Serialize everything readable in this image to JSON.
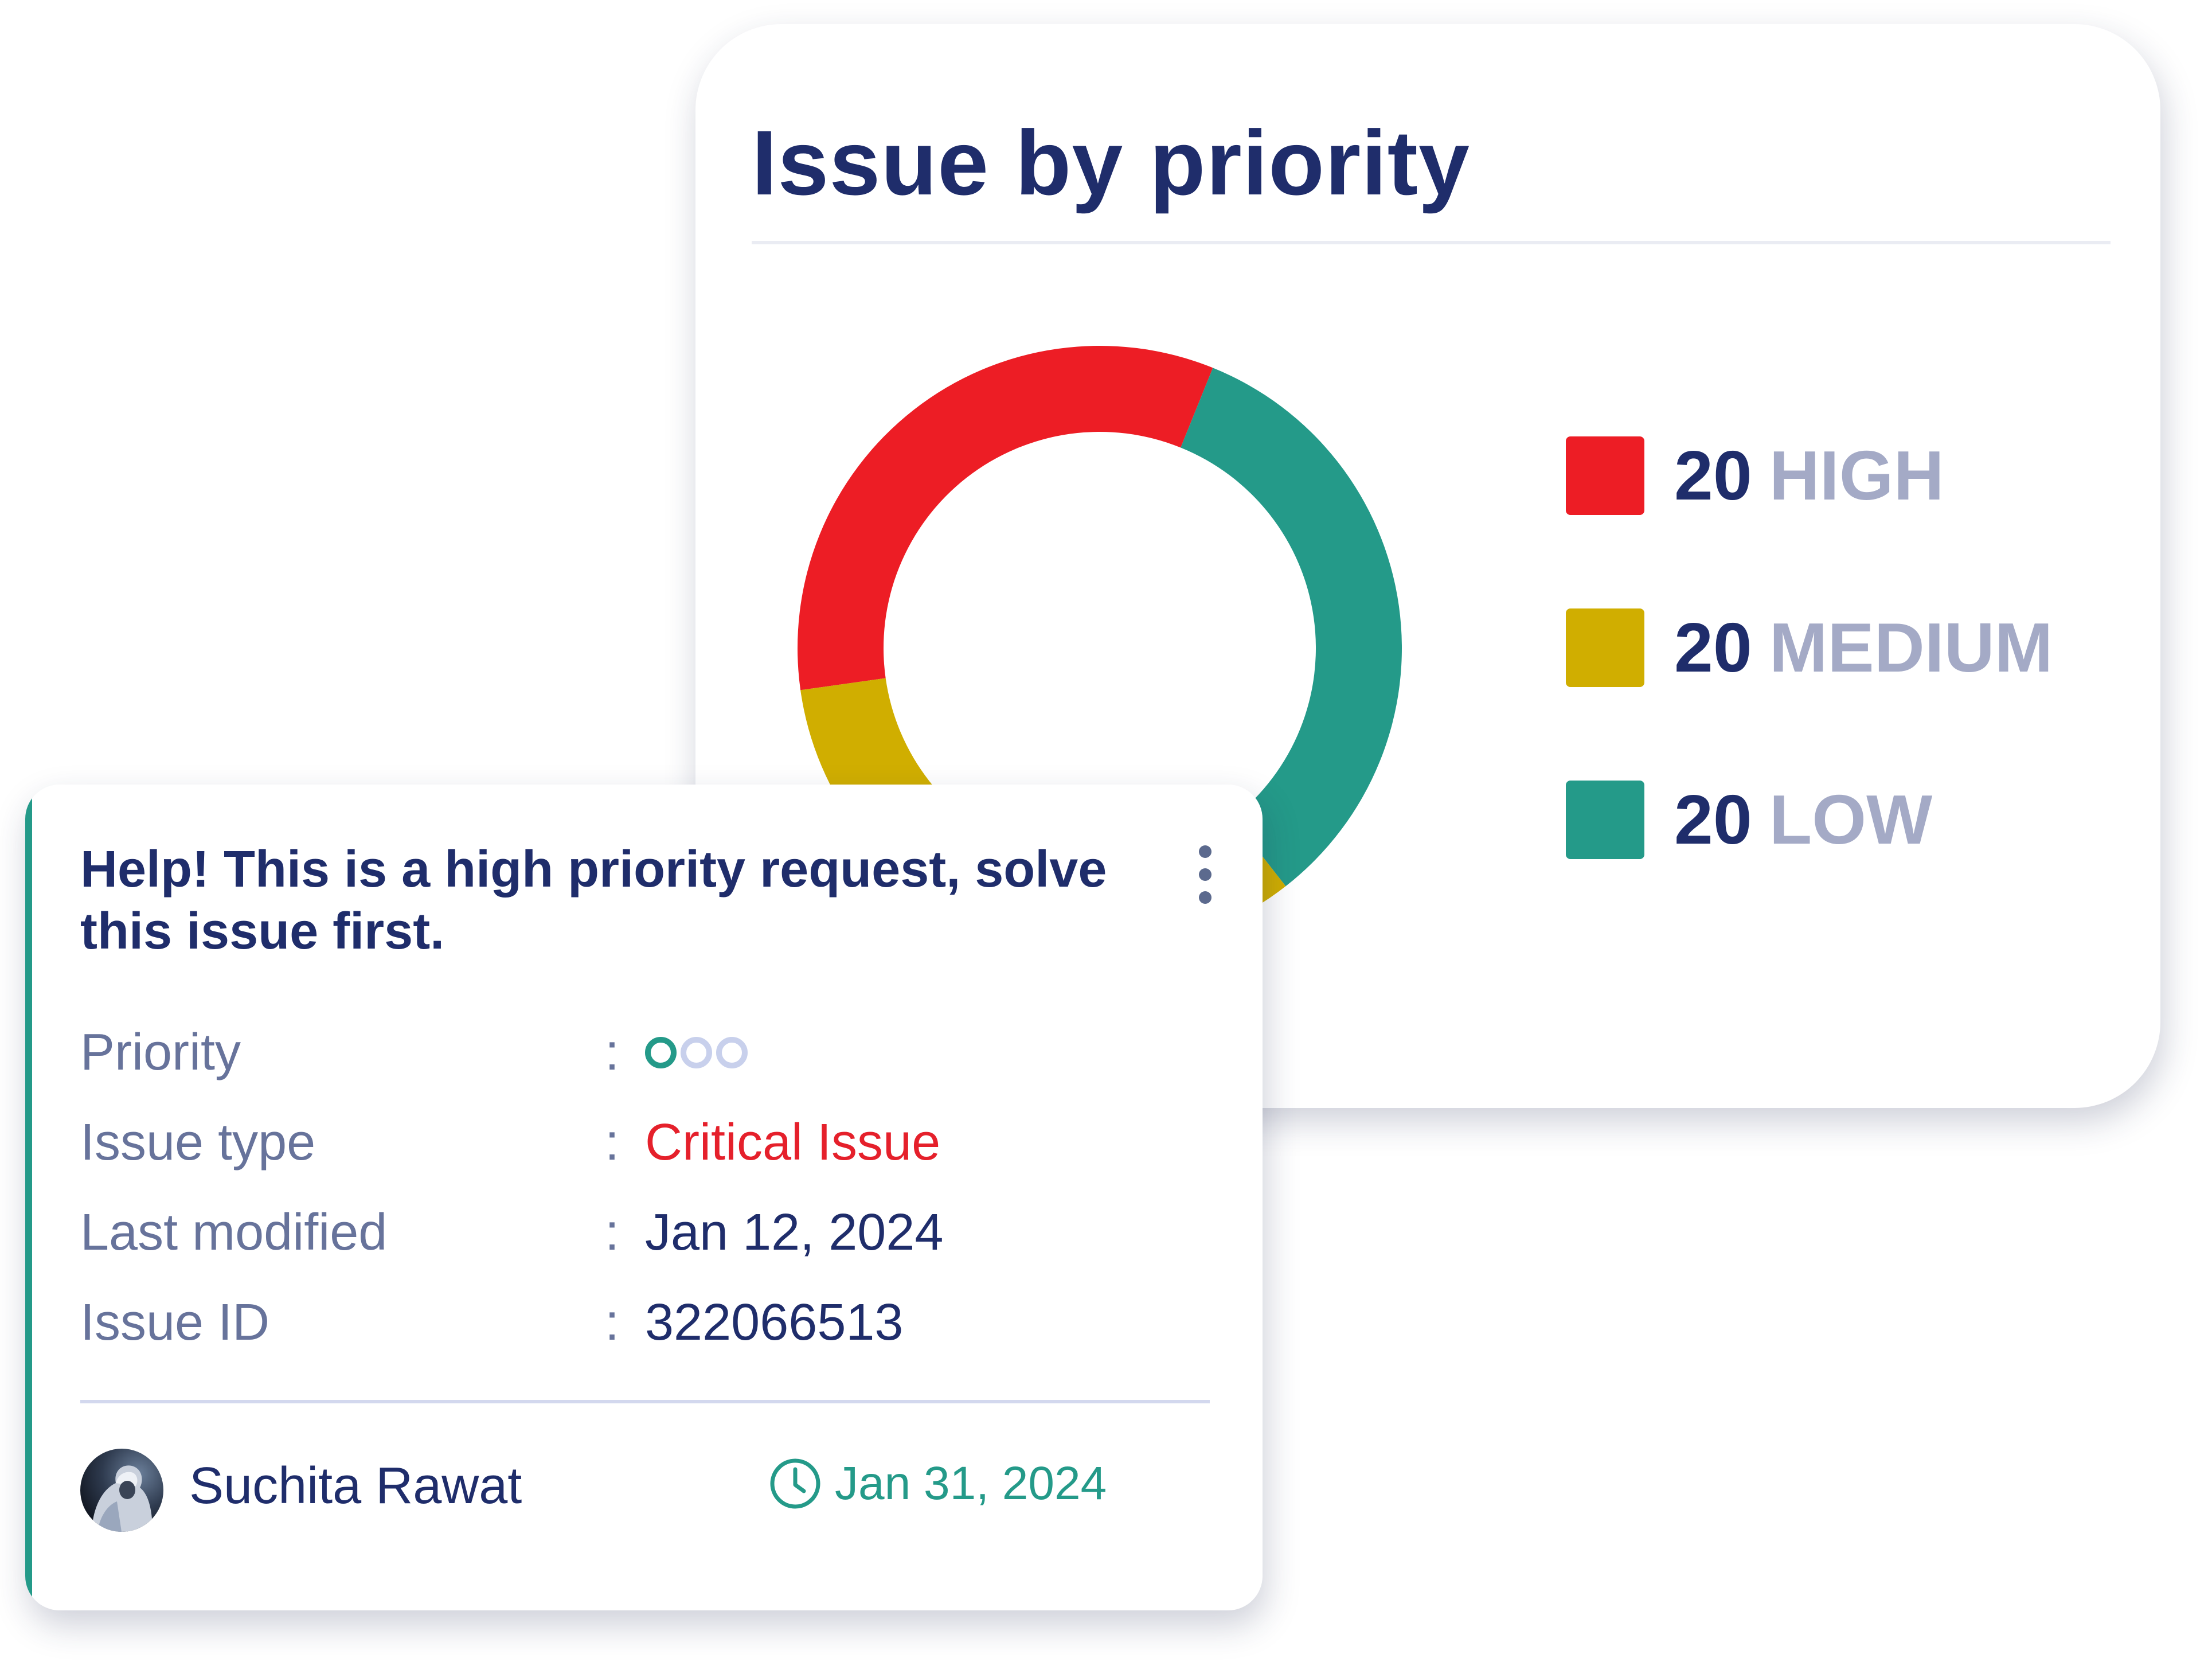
{
  "chart_card": {
    "title": "Issue by priority"
  },
  "chart_data": {
    "type": "pie",
    "categories": [
      "HIGH",
      "MEDIUM",
      "LOW"
    ],
    "values": [
      20,
      20,
      20
    ],
    "colors": [
      "#ed1d25",
      "#d0ae00",
      "#249a89"
    ],
    "legend_position": "right"
  },
  "legend": {
    "items": [
      {
        "count": "20",
        "label": "HIGH",
        "color": "#ed1d25"
      },
      {
        "count": "20",
        "label": "MEDIUM",
        "color": "#d0ae00"
      },
      {
        "count": "20",
        "label": "LOW",
        "color": "#249a89"
      }
    ]
  },
  "issue_card": {
    "title": "Help! This is a high priority request, solve this issue first.",
    "fields": [
      {
        "label": "Priority",
        "separator": ":",
        "value": ""
      },
      {
        "label": "Issue type",
        "separator": ":",
        "value": "Critical Issue"
      },
      {
        "label": "Last modified",
        "separator": ":",
        "value": "Jan 12, 2024"
      },
      {
        "label": "Issue ID",
        "separator": ":",
        "value": "322066513"
      }
    ],
    "priority_level": {
      "filled": 1,
      "total": 3
    },
    "author": "Suchita Rawat",
    "due_date": "Jan 31, 2024",
    "icons": {
      "menu": "kebab-menu-icon",
      "due": "clock-icon"
    }
  },
  "colors": {
    "primary_text": "#1f2d6b",
    "muted_text": "#67739b",
    "accent_teal": "#249a89",
    "critical_red": "#e5202b",
    "high": "#ed1d25",
    "medium": "#d0ae00",
    "low": "#249a89"
  }
}
